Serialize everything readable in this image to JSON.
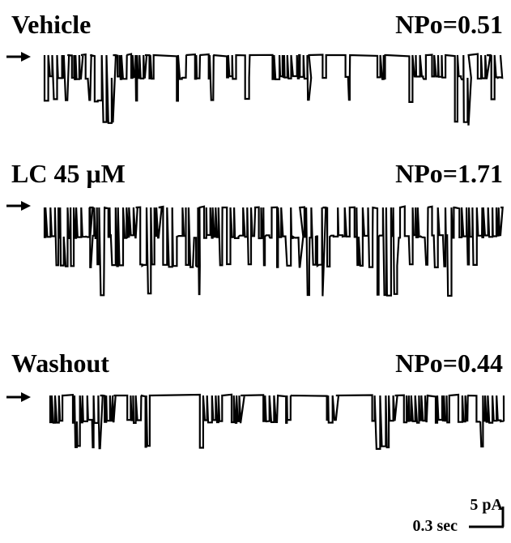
{
  "panels": [
    {
      "condition": "Vehicle",
      "npo": "NPo=0.51",
      "events": [
        [
          0.0,
          0.05,
          2
        ],
        [
          0.06,
          0.02,
          1
        ],
        [
          0.09,
          0.01,
          2
        ],
        [
          0.11,
          0.04,
          3
        ],
        [
          0.16,
          0.02,
          1
        ],
        [
          0.19,
          0.03,
          2
        ],
        [
          0.23,
          0.01,
          1
        ],
        [
          0.29,
          0.02,
          2
        ],
        [
          0.33,
          0.01,
          1
        ],
        [
          0.36,
          0.01,
          2
        ],
        [
          0.4,
          0.02,
          1
        ],
        [
          0.44,
          0.01,
          2
        ],
        [
          0.5,
          0.06,
          1
        ],
        [
          0.56,
          0.02,
          2
        ],
        [
          0.61,
          0.01,
          1
        ],
        [
          0.66,
          0.01,
          2
        ],
        [
          0.73,
          0.02,
          1
        ],
        [
          0.8,
          0.04,
          2
        ],
        [
          0.85,
          0.03,
          1
        ],
        [
          0.9,
          0.03,
          3
        ],
        [
          0.95,
          0.02,
          1
        ],
        [
          0.98,
          0.02,
          2
        ]
      ]
    },
    {
      "condition": "LC 45 μM",
      "npo": "NPo=1.71",
      "events": [
        [
          0.0,
          0.1,
          2
        ],
        [
          0.1,
          0.03,
          3
        ],
        [
          0.14,
          0.04,
          2
        ],
        [
          0.18,
          0.02,
          1
        ],
        [
          0.21,
          0.04,
          3
        ],
        [
          0.26,
          0.05,
          2
        ],
        [
          0.31,
          0.03,
          3
        ],
        [
          0.35,
          0.04,
          2
        ],
        [
          0.4,
          0.06,
          2
        ],
        [
          0.47,
          0.03,
          3
        ],
        [
          0.51,
          0.05,
          2
        ],
        [
          0.57,
          0.04,
          3
        ],
        [
          0.62,
          0.05,
          2
        ],
        [
          0.68,
          0.04,
          2
        ],
        [
          0.73,
          0.05,
          3
        ],
        [
          0.79,
          0.05,
          2
        ],
        [
          0.85,
          0.05,
          3
        ],
        [
          0.91,
          0.05,
          2
        ],
        [
          0.96,
          0.04,
          1
        ]
      ]
    },
    {
      "condition": "Washout",
      "npo": "NPo=0.44",
      "events": [
        [
          0.0,
          0.03,
          1
        ],
        [
          0.05,
          0.06,
          2
        ],
        [
          0.12,
          0.02,
          2
        ],
        [
          0.17,
          0.03,
          1
        ],
        [
          0.21,
          0.01,
          2
        ],
        [
          0.33,
          0.05,
          2
        ],
        [
          0.4,
          0.02,
          1
        ],
        [
          0.47,
          0.03,
          2
        ],
        [
          0.52,
          0.01,
          1
        ],
        [
          0.61,
          0.02,
          1
        ],
        [
          0.71,
          0.05,
          2
        ],
        [
          0.78,
          0.05,
          1
        ],
        [
          0.85,
          0.03,
          2
        ],
        [
          0.9,
          0.02,
          1
        ],
        [
          0.94,
          0.06,
          2
        ]
      ]
    }
  ],
  "scale_bar": {
    "y_label": "5 pA",
    "x_label": "0.3 sec"
  }
}
